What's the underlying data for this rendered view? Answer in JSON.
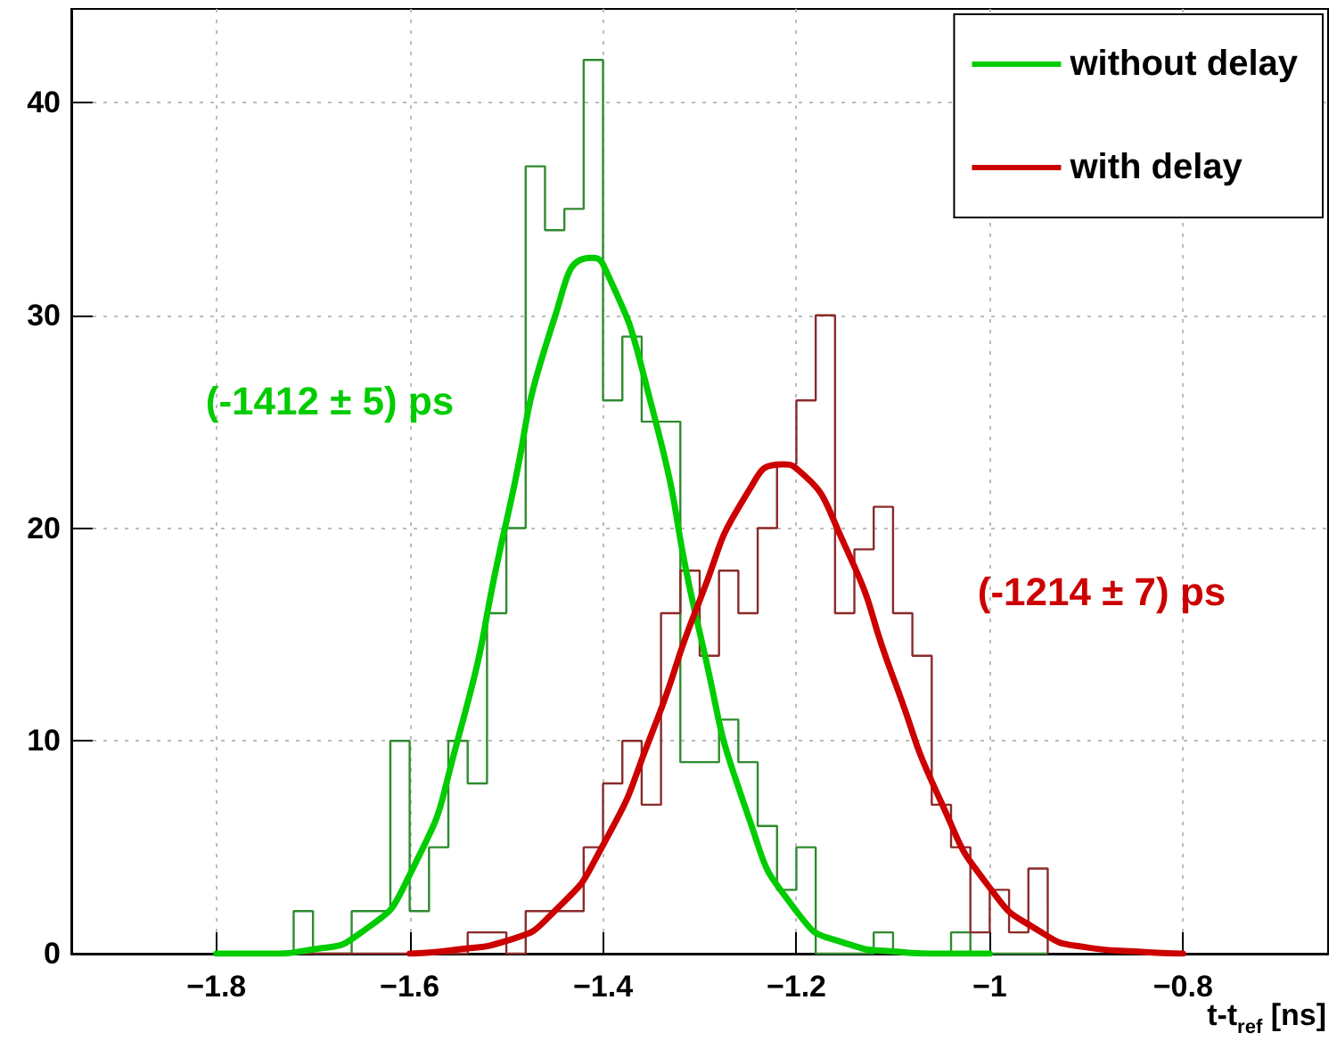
{
  "chart_data": {
    "type": "histogram",
    "xlabel": "t-t$_{ref}$ [ns]",
    "bins": [
      -1.72,
      -1.7,
      -1.68,
      -1.66,
      -1.64,
      -1.62,
      -1.6,
      -1.58,
      -1.56,
      -1.54,
      -1.52,
      -1.5,
      -1.48,
      -1.46,
      -1.44,
      -1.42,
      -1.4,
      -1.38,
      -1.36,
      -1.34,
      -1.32,
      -1.3,
      -1.28,
      -1.26,
      -1.24,
      -1.22,
      -1.2,
      -1.18,
      -1.16,
      -1.14,
      -1.12,
      -1.1,
      -1.08,
      -1.06,
      -1.04,
      -1.02,
      -1.0,
      -0.98,
      -0.96,
      -0.94
    ],
    "series": [
      {
        "color": "#2e8b2e",
        "values": [
          2,
          0,
          0,
          2,
          2,
          10,
          2,
          5,
          10,
          8,
          16,
          20,
          37,
          34,
          35,
          42,
          26,
          29,
          25,
          25,
          9,
          9,
          11,
          9,
          6,
          3,
          5,
          0,
          0,
          0,
          1,
          0,
          0,
          0,
          1,
          0,
          0,
          0,
          0
        ]
      },
      {
        "color": "#8b2a2a",
        "values": [
          0,
          0,
          0,
          0,
          0,
          0,
          0,
          0,
          0,
          1,
          1,
          0,
          2,
          2,
          2,
          5,
          8,
          10,
          7,
          16,
          18,
          14,
          18,
          16,
          20,
          23,
          26,
          30,
          16,
          19,
          21,
          16,
          14,
          7,
          5,
          1,
          3,
          1,
          4
        ]
      },
      {
        "type": "line",
        "name": "without delay",
        "color": "#00cc00",
        "x": [
          -1.8,
          -1.75,
          -1.7,
          -1.65,
          -1.6,
          -1.55,
          -1.5,
          -1.45,
          -1.412,
          -1.4,
          -1.35,
          -1.3,
          -1.25,
          -1.2,
          -1.15,
          -1.1,
          -1.05,
          -1.0
        ],
        "values": [
          0,
          0.0,
          0.2,
          1.0,
          3.7,
          10.1,
          20.3,
          29.9,
          32.7,
          32.4,
          25.8,
          15.1,
          6.5,
          2.0,
          0.5,
          0.1,
          0,
          0
        ]
      },
      {
        "type": "line",
        "name": "with delay",
        "color": "#cc0000",
        "x": [
          -1.6,
          -1.55,
          -1.5,
          -1.45,
          -1.4,
          -1.35,
          -1.3,
          -1.25,
          -1.214,
          -1.2,
          -1.15,
          -1.1,
          -1.05,
          -1.0,
          -0.95,
          -0.9,
          -0.85,
          -0.8
        ],
        "values": [
          0.0,
          0.2,
          0.6,
          2.0,
          5.1,
          10.3,
          16.6,
          21.7,
          23.0,
          22.8,
          19.2,
          13.0,
          7.1,
          3.1,
          1.1,
          0.3,
          0.1,
          0
        ]
      }
    ],
    "annotations": [
      "(-1412 ± 5) ps",
      "(-1214 ± 7) ps"
    ],
    "xlim": [
      -1.95,
      -0.65
    ],
    "xticks": [
      {
        "value": -1.8,
        "label": "−1.8"
      },
      {
        "value": -1.6,
        "label": "−1.6"
      },
      {
        "value": -1.4,
        "label": "−1.4"
      },
      {
        "value": -1.2,
        "label": "−1.2"
      },
      {
        "value": -1.0,
        "label": "−1"
      },
      {
        "value": -0.8,
        "label": "−0.8"
      }
    ],
    "ylim": [
      0,
      44.4
    ],
    "yticks": [
      0,
      10,
      20,
      30,
      40
    ],
    "grid": true,
    "legend": "top right",
    "line_style": "solid",
    "marker": "none"
  }
}
